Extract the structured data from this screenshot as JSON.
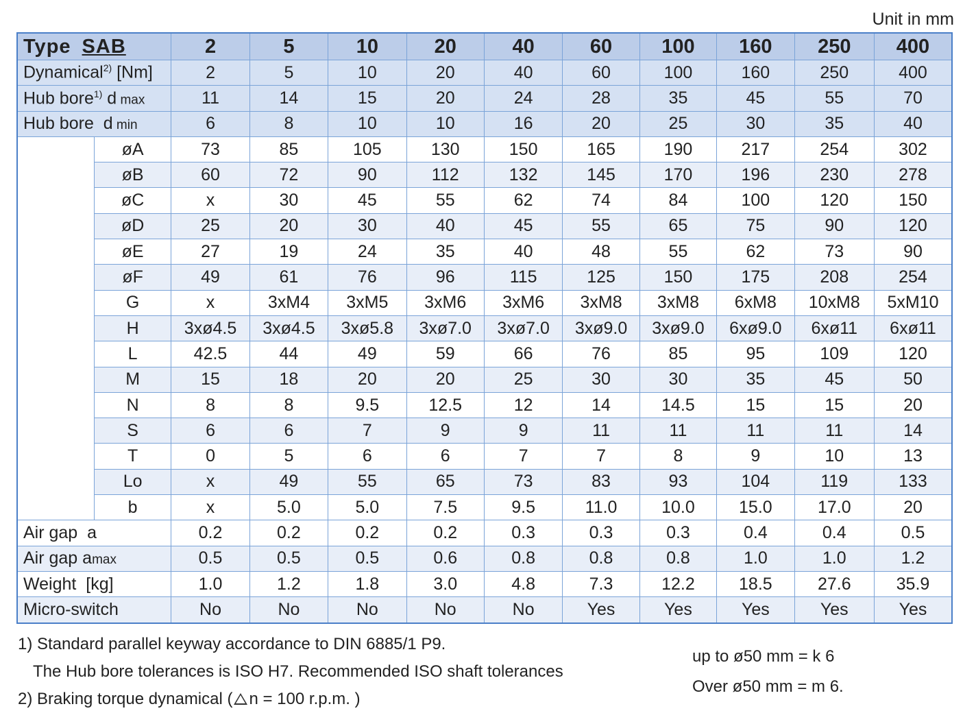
{
  "unit_label": "Unit in mm",
  "header": {
    "type_word": "Type",
    "type_code": "SAB",
    "sizes": [
      "2",
      "5",
      "10",
      "20",
      "40",
      "60",
      "100",
      "160",
      "250",
      "400"
    ]
  },
  "spec_rows": [
    {
      "label": "Dynamical",
      "sup": "2)",
      "suffix": " [Nm]",
      "suffix_small": "",
      "values": [
        "2",
        "5",
        "10",
        "20",
        "40",
        "60",
        "100",
        "160",
        "250",
        "400"
      ]
    },
    {
      "label": "Hub bore",
      "sup": "1)",
      "suffix": " d",
      "suffix_small": " max",
      "values": [
        "11",
        "14",
        "15",
        "20",
        "24",
        "28",
        "35",
        "45",
        "55",
        "70"
      ]
    },
    {
      "label": "Hub bore",
      "sup": "",
      "suffix": "  d",
      "suffix_small": " min",
      "values": [
        "6",
        "8",
        "10",
        "10",
        "16",
        "20",
        "25",
        "30",
        "35",
        "40"
      ]
    }
  ],
  "dim_rows": [
    {
      "label": "øA",
      "values": [
        "73",
        "85",
        "105",
        "130",
        "150",
        "165",
        "190",
        "217",
        "254",
        "302"
      ]
    },
    {
      "label": "øB",
      "values": [
        "60",
        "72",
        "90",
        "112",
        "132",
        "145",
        "170",
        "196",
        "230",
        "278"
      ]
    },
    {
      "label": "øC",
      "values": [
        "x",
        "30",
        "45",
        "55",
        "62",
        "74",
        "84",
        "100",
        "120",
        "150"
      ]
    },
    {
      "label": "øD",
      "values": [
        "25",
        "20",
        "30",
        "40",
        "45",
        "55",
        "65",
        "75",
        "90",
        "120"
      ]
    },
    {
      "label": "øE",
      "values": [
        "27",
        "19",
        "24",
        "35",
        "40",
        "48",
        "55",
        "62",
        "73",
        "90"
      ]
    },
    {
      "label": "øF",
      "values": [
        "49",
        "61",
        "76",
        "96",
        "115",
        "125",
        "150",
        "175",
        "208",
        "254"
      ]
    },
    {
      "label": "G",
      "values": [
        "x",
        "3xM4",
        "3xM5",
        "3xM6",
        "3xM6",
        "3xM8",
        "3xM8",
        "6xM8",
        "10xM8",
        "5xM10"
      ]
    },
    {
      "label": "H",
      "values": [
        "3xø4.5",
        "3xø4.5",
        "3xø5.8",
        "3xø7.0",
        "3xø7.0",
        "3xø9.0",
        "3xø9.0",
        "6xø9.0",
        "6xø11",
        "6xø11"
      ]
    },
    {
      "label": "L",
      "values": [
        "42.5",
        "44",
        "49",
        "59",
        "66",
        "76",
        "85",
        "95",
        "109",
        "120"
      ]
    },
    {
      "label": "M",
      "values": [
        "15",
        "18",
        "20",
        "20",
        "25",
        "30",
        "30",
        "35",
        "45",
        "50"
      ]
    },
    {
      "label": "N",
      "values": [
        "8",
        "8",
        "9.5",
        "12.5",
        "12",
        "14",
        "14.5",
        "15",
        "15",
        "20"
      ]
    },
    {
      "label": "S",
      "values": [
        "6",
        "6",
        "7",
        "9",
        "9",
        "11",
        "11",
        "11",
        "11",
        "14"
      ]
    },
    {
      "label": "T",
      "values": [
        "0",
        "5",
        "6",
        "6",
        "7",
        "7",
        "8",
        "9",
        "10",
        "13"
      ]
    },
    {
      "label": "Lo",
      "values": [
        "x",
        "49",
        "55",
        "65",
        "73",
        "83",
        "93",
        "104",
        "119",
        "133"
      ]
    },
    {
      "label": "b",
      "values": [
        "x",
        "5.0",
        "5.0",
        "7.5",
        "9.5",
        "11.0",
        "10.0",
        "15.0",
        "17.0",
        "20"
      ]
    }
  ],
  "bottom_rows": [
    {
      "label": "Air gap",
      "suffix": "  a",
      "suffix_small": "",
      "values": [
        "0.2",
        "0.2",
        "0.2",
        "0.2",
        "0.3",
        "0.3",
        "0.3",
        "0.4",
        "0.4",
        "0.5"
      ]
    },
    {
      "label": "Air gap",
      "suffix": " a",
      "suffix_small": "max",
      "values": [
        "0.5",
        "0.5",
        "0.5",
        "0.6",
        "0.8",
        "0.8",
        "0.8",
        "1.0",
        "1.0",
        "1.2"
      ]
    },
    {
      "label": "Weight",
      "suffix": "  [kg]",
      "suffix_small": "",
      "values": [
        "1.0",
        "1.2",
        "1.8",
        "3.0",
        "4.8",
        "7.3",
        "12.2",
        "18.5",
        "27.6",
        "35.9"
      ]
    },
    {
      "label": "Micro-switch",
      "suffix": "",
      "suffix_small": "",
      "values": [
        "No",
        "No",
        "No",
        "No",
        "No",
        "Yes",
        "Yes",
        "Yes",
        "Yes",
        "Yes"
      ]
    }
  ],
  "footnotes": {
    "note1": "1) Standard parallel keyway accordance to DIN 6885/1 P9.",
    "note1b": "The Hub bore tolerances is ISO H7. Recommended ISO shaft tolerances",
    "note2_pre": "2) Braking torque dynamical (",
    "note2_post": "n = 100 r.p.m. )",
    "tol_line1": "up to ø50 mm = k 6",
    "tol_line2": "Over ø50 mm = m 6."
  }
}
